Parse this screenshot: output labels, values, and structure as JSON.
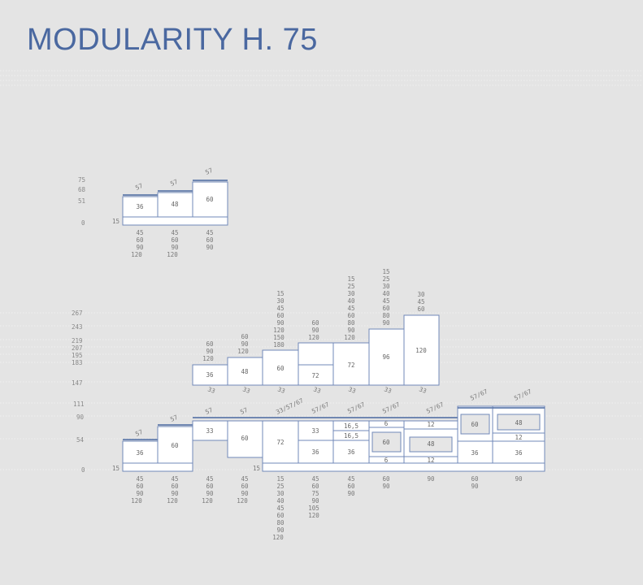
{
  "title": "MODULARITY H. 75",
  "top_group": {
    "y_ticks": [
      "75",
      "68",
      "51",
      "0"
    ],
    "base_label": "15",
    "modules": [
      {
        "inside": "36",
        "angled": "57",
        "widths": [
          "45",
          "60",
          "90",
          "120"
        ]
      },
      {
        "inside": "48",
        "angled": "57",
        "widths": [
          "45",
          "60",
          "90",
          "120"
        ]
      },
      {
        "inside": "60",
        "angled": "57",
        "widths": [
          "45",
          "60",
          "90"
        ]
      }
    ]
  },
  "upper_group": {
    "y_ticks": [
      "267",
      "243",
      "219",
      "207",
      "195",
      "183",
      "147"
    ],
    "modules": [
      {
        "inside": "36",
        "below": "33",
        "sizes": [
          "60",
          "90",
          "120"
        ]
      },
      {
        "inside": "48",
        "below": "33",
        "sizes": [
          "60",
          "90",
          "120"
        ]
      },
      {
        "inside": "60",
        "below": "33",
        "sizes": [
          "15",
          "30",
          "45",
          "60",
          "90",
          "120",
          "150",
          "180"
        ]
      },
      {
        "inside": "72",
        "below": "33",
        "sizes": [
          "60",
          "90",
          "120"
        ]
      },
      {
        "inside": "72",
        "below": "33",
        "sizes": [
          "15",
          "25",
          "30",
          "40",
          "45",
          "60",
          "80",
          "90",
          "120"
        ]
      },
      {
        "inside": "96",
        "below": "33",
        "sizes": [
          "15",
          "25",
          "30",
          "40",
          "45",
          "60",
          "80",
          "90"
        ]
      },
      {
        "inside": "120",
        "below": "33",
        "sizes": [
          "30",
          "45",
          "60"
        ]
      }
    ]
  },
  "lower_group": {
    "y_ticks": [
      "111",
      "90",
      "54",
      "0"
    ],
    "base_label_left": "15",
    "base_label_mid": "15",
    "modules": [
      {
        "inside": "36",
        "angled": "57",
        "widths": [
          "45",
          "60",
          "90",
          "120"
        ]
      },
      {
        "inside": "60",
        "angled": "57",
        "widths": [
          "45",
          "60",
          "90",
          "120"
        ]
      },
      {
        "inside": "33",
        "angled": "57",
        "widths": [
          "45",
          "60",
          "90",
          "120"
        ]
      },
      {
        "inside": "60",
        "angled": "57",
        "widths": [
          "45",
          "60",
          "90",
          "120"
        ]
      },
      {
        "inside": "72",
        "angled": "33/57/67",
        "widths": [
          "15",
          "25",
          "30",
          "40",
          "45",
          "60",
          "80",
          "90",
          "120"
        ]
      },
      {
        "inside_top": "33",
        "inside": "36",
        "angled": "57/67",
        "widths": [
          "45",
          "60",
          "75",
          "90",
          "105",
          "120"
        ]
      },
      {
        "inside_top": "16,5",
        "inside_mid": "16,5",
        "inside": "36",
        "angled": "57/67",
        "widths": [
          "45",
          "60",
          "90"
        ]
      },
      {
        "inside_top": "6",
        "inside_mid": "60",
        "inside": "6",
        "angled": "57/67",
        "widths": [
          "60",
          "90"
        ]
      },
      {
        "inside_top": "12",
        "inside_mid": "48",
        "inside": "12",
        "angled": "57/67",
        "widths": [
          "90"
        ]
      },
      {
        "inside_top": "60",
        "inside": "36",
        "angled": "57/67",
        "widths": [
          "60",
          "90"
        ]
      },
      {
        "inside_top": "48",
        "inside_mid": "12",
        "inside": "36",
        "angled": "57/67",
        "widths": [
          "90"
        ]
      }
    ]
  },
  "colors": {
    "background": "#e4e4e4",
    "accent": "#4a68a0",
    "outline": "#7088b8",
    "text": "#7a7a7a"
  }
}
